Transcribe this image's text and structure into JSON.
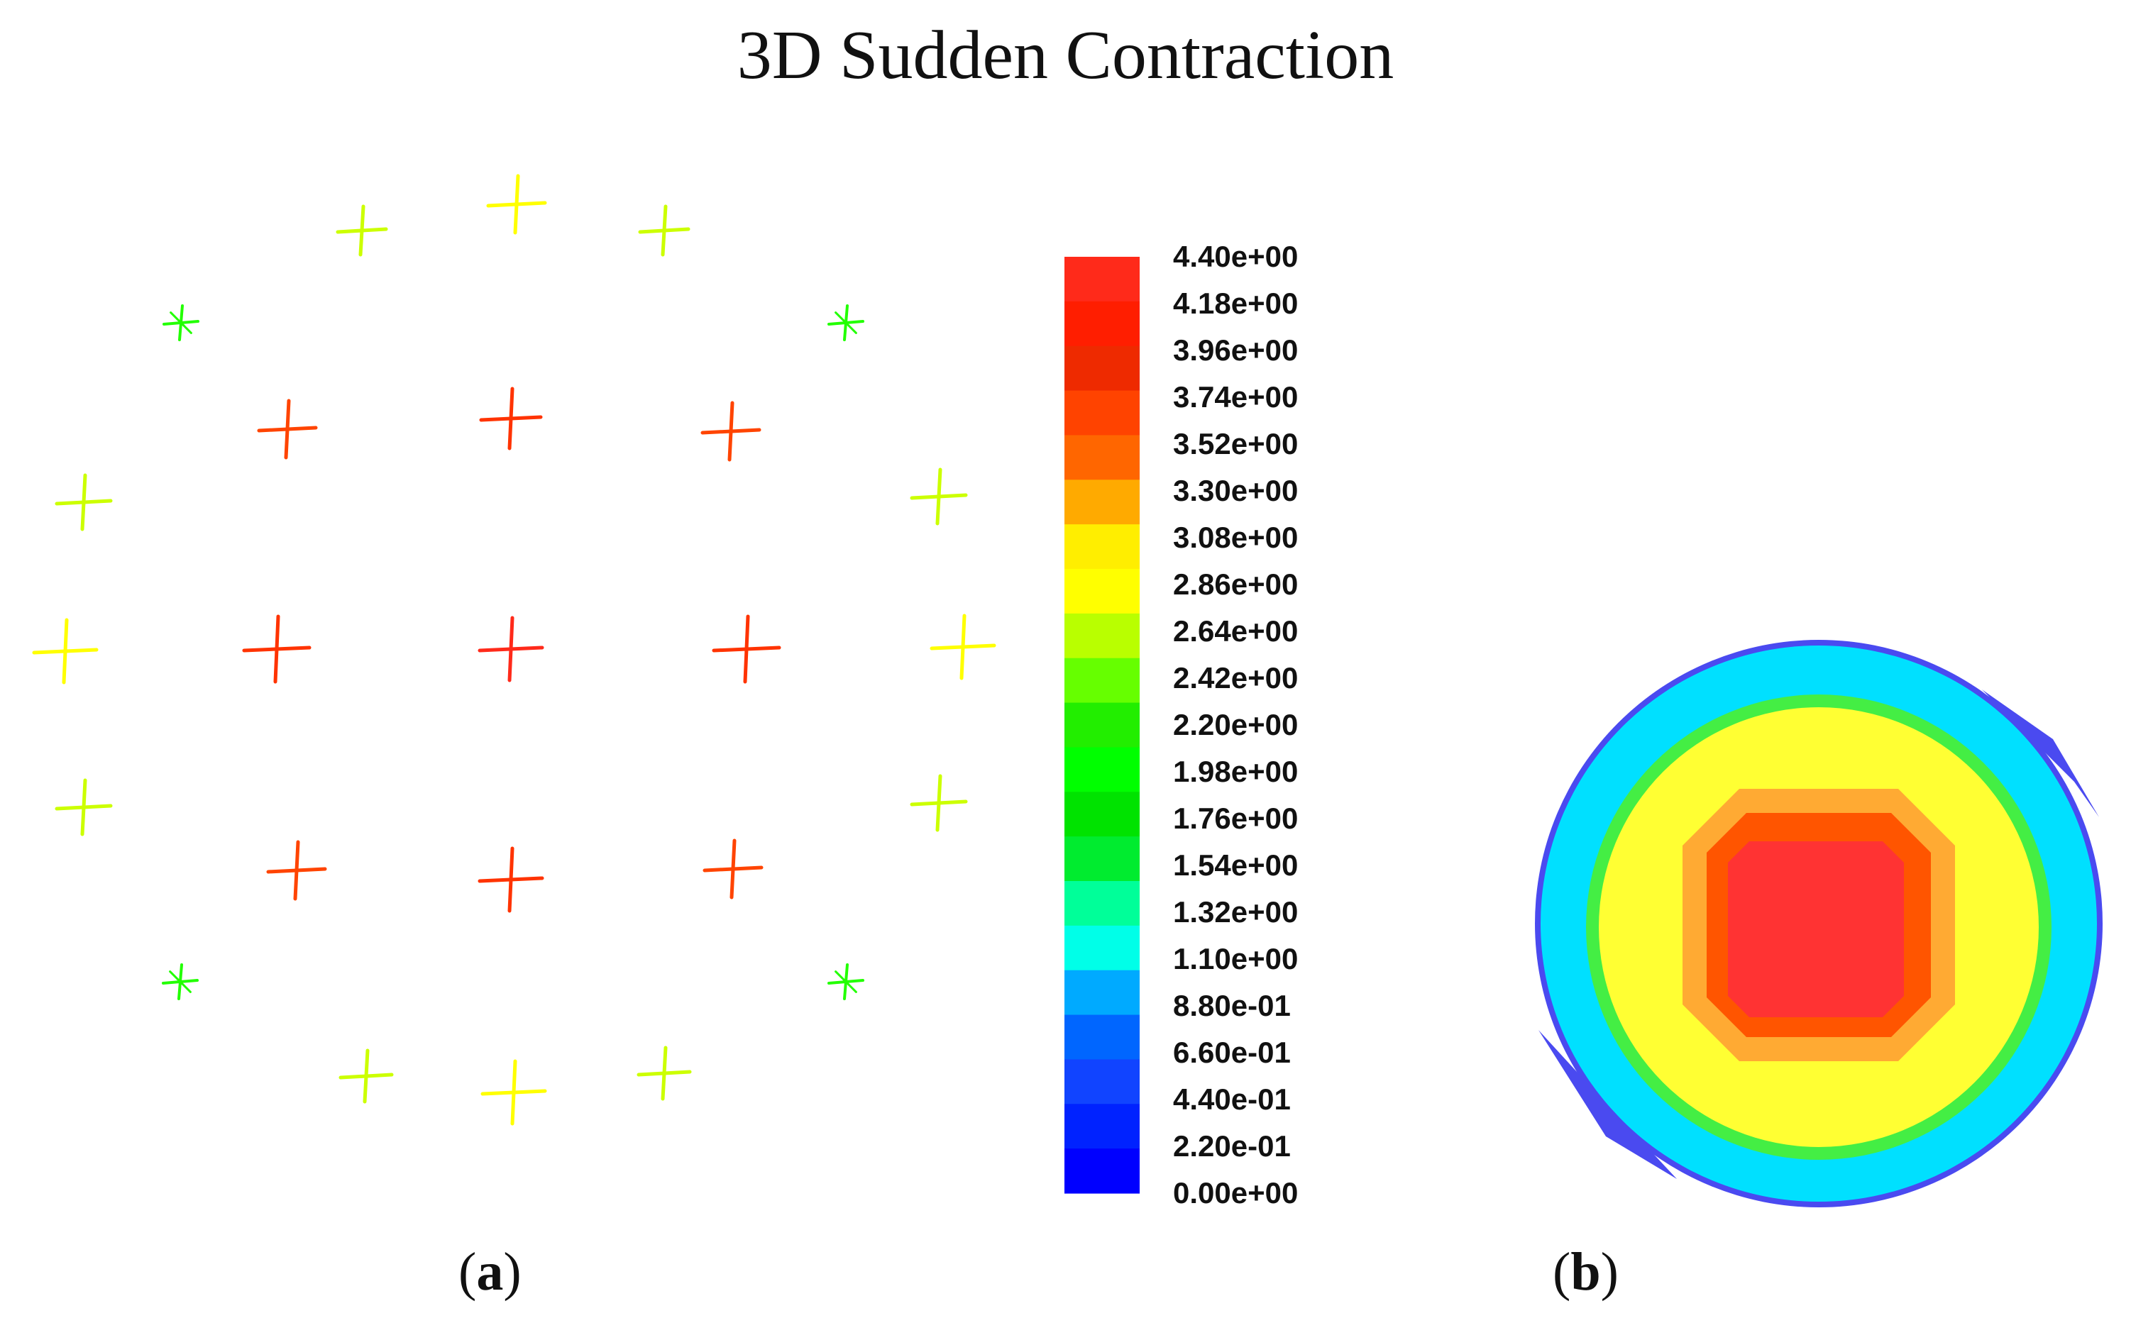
{
  "title": "3D Sudden Contraction",
  "colorbar": {
    "labels": [
      "4.40e+00",
      "4.18e+00",
      "3.96e+00",
      "3.74e+00",
      "3.52e+00",
      "3.30e+00",
      "3.08e+00",
      "2.86e+00",
      "2.64e+00",
      "2.42e+00",
      "2.20e+00",
      "1.98e+00",
      "1.76e+00",
      "1.54e+00",
      "1.32e+00",
      "1.10e+00",
      "8.80e-01",
      "6.60e-01",
      "4.40e-01",
      "2.20e-01",
      "0.00e+00"
    ],
    "colors": [
      "#ff2a1a",
      "#ff1e00",
      "#ee2a00",
      "#ff4300",
      "#ff6600",
      "#ffaa00",
      "#ffee00",
      "#ffff00",
      "#b9ff00",
      "#66ff00",
      "#22ee00",
      "#00ff00",
      "#00e300",
      "#00ec2f",
      "#00ff99",
      "#00ffe8",
      "#00aaff",
      "#0066ff",
      "#1144ff",
      "#0022ff",
      "#0000ff"
    ]
  },
  "panel_a": {
    "caption": "a",
    "markers": [
      {
        "color": "#ff2a1a"
      },
      {
        "color": "#ff3300"
      },
      {
        "color": "#ff3300"
      },
      {
        "color": "#ff3300"
      },
      {
        "color": "#ff3300"
      },
      {
        "color": "#ff4400"
      },
      {
        "color": "#ff4400"
      },
      {
        "color": "#ff4400"
      },
      {
        "color": "#ff4400"
      },
      {
        "color": "#ffff00"
      },
      {
        "color": "#ffff00"
      },
      {
        "color": "#ffff00"
      },
      {
        "color": "#ffff00"
      },
      {
        "color": "#ccff00"
      },
      {
        "color": "#ccff00"
      },
      {
        "color": "#ccff00"
      },
      {
        "color": "#ccff00"
      },
      {
        "color": "#ccff00"
      },
      {
        "color": "#ccff00"
      },
      {
        "color": "#ccff00"
      },
      {
        "color": "#ccff00"
      },
      {
        "color": "#22ff00"
      },
      {
        "color": "#22ff00"
      },
      {
        "color": "#22ff00"
      },
      {
        "color": "#22ff00"
      }
    ]
  },
  "panel_b": {
    "caption": "b",
    "contour_colors": [
      "#4a4af0",
      "#00e0ff",
      "#44ee44",
      "#ffff33",
      "#ffaa33",
      "#ff5500",
      "#ff3333"
    ]
  },
  "caption_parens": [
    "(",
    ")"
  ]
}
